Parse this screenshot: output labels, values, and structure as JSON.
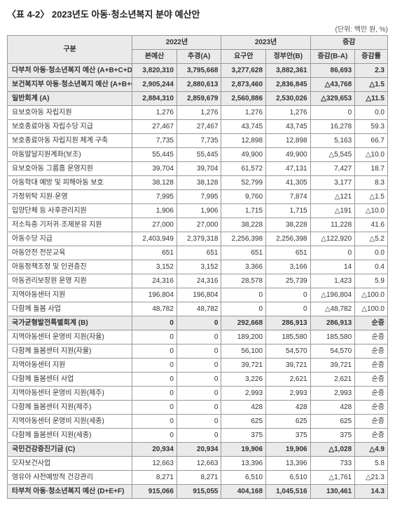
{
  "title": "〈표 4-2〉 2023년도 아동·청소년복지 분야 예산안",
  "unit": "(단위: 백만 원, %)",
  "header": {
    "category": "구분",
    "y2022": "2022년",
    "y2023": "2023년",
    "change": "증감",
    "sub": {
      "bon": "본예산",
      "chu": "추경(A)",
      "yogu": "요구안",
      "jeongbu": "정부안(B)",
      "diff": "증감(B-A)",
      "rate": "증감률"
    }
  },
  "rows": [
    {
      "shaded": true,
      "bold": true,
      "label": "다부처 아동·청소년복지 예산 (A+B+C+D+E+F)",
      "v": [
        "3,820,310",
        "3,795,668",
        "3,277,628",
        "3,882,361",
        "86,693",
        "2.3"
      ]
    },
    {
      "shaded": true,
      "bold": true,
      "label": "보건복지부 아동·청소년복지 예산 (A+B+C)",
      "v": [
        "2,905,244",
        "2,880,613",
        "2,873,460",
        "2,836,845",
        "△43,768",
        "△1.5"
      ]
    },
    {
      "shaded": true,
      "bold": true,
      "label": "일반회계 (A)",
      "v": [
        "2,884,310",
        "2,859,679",
        "2,560,886",
        "2,530,026",
        "△329,653",
        "△11.5"
      ]
    },
    {
      "label": "요보호아동 자립지원",
      "v": [
        "1,276",
        "1,276",
        "1,276",
        "1,276",
        "0",
        "0.0"
      ]
    },
    {
      "label": "보호종료아동 자립수당 지급",
      "v": [
        "27,467",
        "27,467",
        "43,745",
        "43,745",
        "16,278",
        "59.3"
      ]
    },
    {
      "label": "보호종료아동 자립지원 체계 구축",
      "v": [
        "7,735",
        "7,735",
        "12,898",
        "12,898",
        "5,163",
        "66.7"
      ]
    },
    {
      "label": "아동발달지원계좌(보조)",
      "v": [
        "55,445",
        "55,445",
        "49,900",
        "49,900",
        "△5,545",
        "△10.0"
      ]
    },
    {
      "label": "요보호아동 그룹홈 운영지원",
      "v": [
        "39,704",
        "39,704",
        "61,572",
        "47,131",
        "7,427",
        "18.7"
      ]
    },
    {
      "label": "아동학대 예방 및 피해아동 보호",
      "v": [
        "38,128",
        "38,128",
        "52,799",
        "41,305",
        "3,177",
        "8.3"
      ]
    },
    {
      "label": "가정위탁 지원·운영",
      "v": [
        "7,995",
        "7,995",
        "9,760",
        "7,874",
        "△121",
        "△1.5"
      ]
    },
    {
      "label": "입양단체 등 사후관리지원",
      "v": [
        "1,906",
        "1,906",
        "1,715",
        "1,715",
        "△191",
        "△10.0"
      ]
    },
    {
      "label": "저소득층 기저귀·조제분유 지원",
      "v": [
        "27,000",
        "27,000",
        "38,228",
        "38,228",
        "11,228",
        "41.6"
      ]
    },
    {
      "label": "아동수당 지급",
      "v": [
        "2,403,949",
        "2,379,318",
        "2,256,398",
        "2,256,398",
        "△122,920",
        "△5.2"
      ]
    },
    {
      "label": "아동안전 전문교육",
      "v": [
        "651",
        "651",
        "651",
        "651",
        "0",
        "0.0"
      ]
    },
    {
      "label": "아동정책조정 및 인권증진",
      "v": [
        "3,152",
        "3,152",
        "3,366",
        "3,166",
        "14",
        "0.4"
      ]
    },
    {
      "label": "아동권리보장원 운영 지원",
      "v": [
        "24,316",
        "24,316",
        "28,578",
        "25,739",
        "1,423",
        "5.9"
      ]
    },
    {
      "label": "지역아동센터 지원",
      "v": [
        "196,804",
        "196,804",
        "0",
        "0",
        "△196,804",
        "△100.0"
      ]
    },
    {
      "label": "다함께 돌봄 사업",
      "v": [
        "48,782",
        "48,782",
        "0",
        "0",
        "△48,782",
        "△100.0"
      ]
    },
    {
      "shaded": true,
      "bold": true,
      "label": "국가균형발전특별회계 (B)",
      "v": [
        "0",
        "0",
        "292,668",
        "286,913",
        "286,913",
        "순증"
      ]
    },
    {
      "label": "지역아동센터 운영비 지원(자율)",
      "v": [
        "0",
        "0",
        "189,200",
        "185,580",
        "185,580",
        "순증"
      ]
    },
    {
      "label": "다함께 돌봄센터 지원(자율)",
      "v": [
        "0",
        "0",
        "56,100",
        "54,570",
        "54,570",
        "순증"
      ]
    },
    {
      "label": "지역아동센터 지원",
      "v": [
        "0",
        "0",
        "39,721",
        "39,721",
        "39,721",
        "순증"
      ]
    },
    {
      "label": "다함께 돌봄센터 사업",
      "v": [
        "0",
        "0",
        "3,226",
        "2,621",
        "2,621",
        "순증"
      ]
    },
    {
      "label": "지역아동센터 운영비 지원(제주)",
      "v": [
        "0",
        "0",
        "2,993",
        "2,993",
        "2,993",
        "순증"
      ]
    },
    {
      "label": "다함께 돌봄센터 지원(제주)",
      "v": [
        "0",
        "0",
        "428",
        "428",
        "428",
        "순증"
      ]
    },
    {
      "label": "지역아동센터 운영비 지원(세종)",
      "v": [
        "0",
        "0",
        "625",
        "625",
        "625",
        "순증"
      ]
    },
    {
      "label": "다함께 돌봄센터 지원(세종)",
      "v": [
        "0",
        "0",
        "375",
        "375",
        "375",
        "순증"
      ]
    },
    {
      "shaded": true,
      "bold": true,
      "label": "국민건강증진기금 (C)",
      "v": [
        "20,934",
        "20,934",
        "19,906",
        "19,906",
        "△1,028",
        "△4.9"
      ]
    },
    {
      "label": "모자보건사업",
      "v": [
        "12,663",
        "12,663",
        "13,396",
        "13,396",
        "733",
        "5.8"
      ]
    },
    {
      "label": "영유아 사전예방적 건강관리",
      "v": [
        "8,271",
        "8,271",
        "6,510",
        "6,510",
        "△1,761",
        "△21.3"
      ]
    },
    {
      "shaded": true,
      "bold": true,
      "label": "타부처 아동·청소년복지 예산 (D+E+F)",
      "v": [
        "915,066",
        "915,055",
        "404,168",
        "1,045,516",
        "130,461",
        "14.3"
      ]
    }
  ]
}
